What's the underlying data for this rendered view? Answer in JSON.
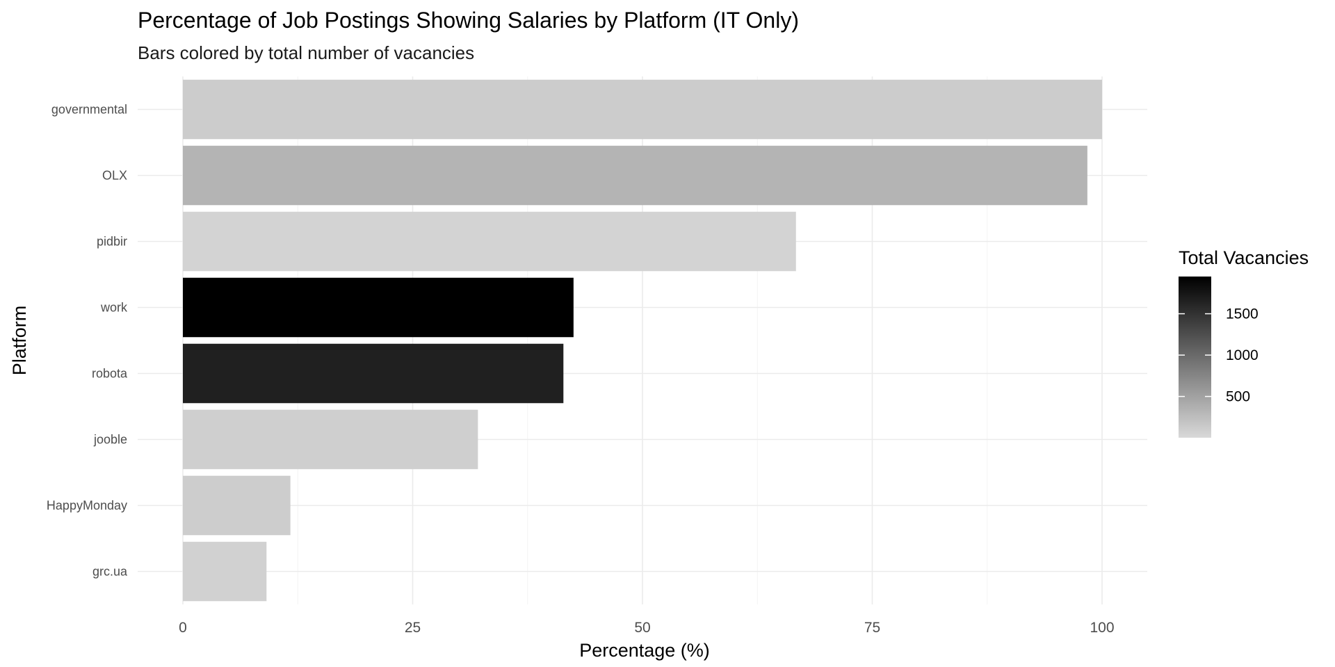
{
  "chart_data": {
    "type": "bar",
    "orientation": "horizontal",
    "title": "Percentage of Job Postings Showing Salaries by Platform (IT Only)",
    "subtitle": "Bars colored by total number of vacancies",
    "xlabel": "Percentage (%)",
    "ylabel": "Platform",
    "xlim": [
      0,
      105
    ],
    "xticks": [
      0,
      25,
      50,
      75,
      100
    ],
    "xtick_labels": [
      "0",
      "25",
      "50",
      "75",
      "100"
    ],
    "grid": true,
    "categories": [
      "governmental",
      "OLX",
      "pidbir",
      "work",
      "robota",
      "jooble",
      "HappyMonday",
      "grc.ua"
    ],
    "values": [
      100,
      98.4,
      66.7,
      42.5,
      41.4,
      32.1,
      11.7,
      9.1
    ],
    "bar_colors": [
      "#cccccc",
      "#b4b4b4",
      "#d3d3d3",
      "#000000",
      "#202020",
      "#cfcfcf",
      "#cdcdcd",
      "#d1d1d1"
    ],
    "legend": {
      "title": "Total Vacancies",
      "placement": "right",
      "ticks": [
        500,
        1000,
        1500
      ],
      "tick_labels": [
        "500",
        "1000",
        "1500"
      ],
      "range": [
        1,
        1950
      ],
      "color_low": "#d9d9d9",
      "color_high": "#000000"
    }
  }
}
